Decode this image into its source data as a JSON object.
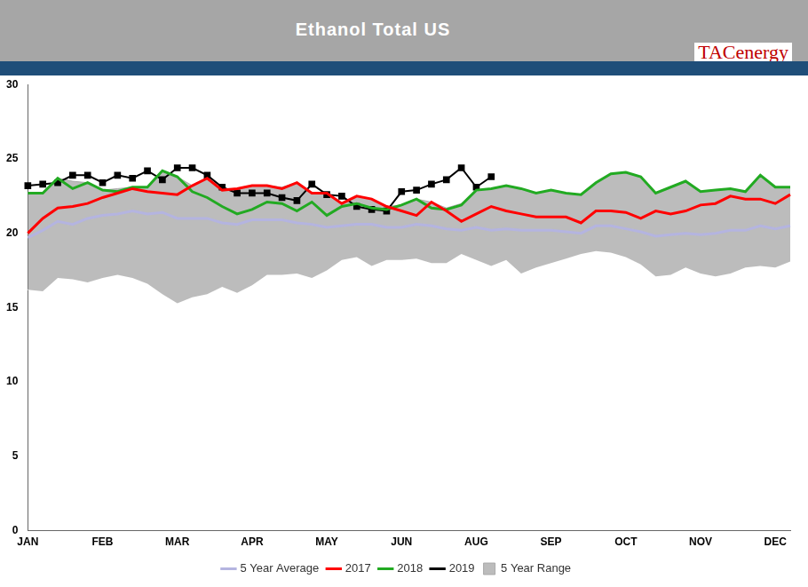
{
  "chart_data": {
    "type": "line",
    "title": "Ethanol Total US",
    "logo": "TACenergy",
    "categories": [
      "JAN",
      null,
      null,
      null,
      null,
      "FEB",
      null,
      null,
      null,
      null,
      "MAR",
      null,
      null,
      null,
      null,
      "APR",
      null,
      null,
      null,
      null,
      "MAY",
      null,
      null,
      null,
      null,
      "JUN",
      null,
      null,
      null,
      null,
      "AUG",
      null,
      null,
      null,
      null,
      "SEP",
      null,
      null,
      null,
      null,
      "OCT",
      null,
      null,
      null,
      null,
      "NOV",
      null,
      null,
      null,
      null,
      "DEC",
      null
    ],
    "ylim": [
      0,
      30
    ],
    "yticks": [
      0,
      5,
      10,
      15,
      20,
      25,
      30
    ],
    "grid": false,
    "legend": "bottom",
    "series": [
      {
        "name": "5 Year Range",
        "type": "area",
        "color": "#a6a6a6",
        "low": [
          16.2,
          16.1,
          17.0,
          16.9,
          16.7,
          17.0,
          17.2,
          17.0,
          16.6,
          15.9,
          15.3,
          15.7,
          15.9,
          16.4,
          16.0,
          16.5,
          17.2,
          17.2,
          17.3,
          17.0,
          17.5,
          18.2,
          18.4,
          17.8,
          18.2,
          18.2,
          18.3,
          18.0,
          18.0,
          18.6,
          18.2,
          17.8,
          18.2,
          17.3,
          17.7,
          18.0,
          18.3,
          18.6,
          18.8,
          18.7,
          18.4,
          17.9,
          17.1,
          17.2,
          17.7,
          17.3,
          17.1,
          17.3,
          17.7,
          17.8,
          17.7,
          18.1
        ],
        "high": [
          22.7,
          22.7,
          23.7,
          23.5,
          23.4,
          22.9,
          23.0,
          23.1,
          23.1,
          24.2,
          23.8,
          23.2,
          23.7,
          23.0,
          23.0,
          23.2,
          23.2,
          23.1,
          23.4,
          22.7,
          22.7,
          22.0,
          22.5,
          22.3,
          21.8,
          21.9,
          22.3,
          22.1,
          21.7,
          22.0,
          22.9,
          23.0,
          23.2,
          23.0,
          22.7,
          22.9,
          22.7,
          22.6,
          23.4,
          24.0,
          24.1,
          23.8,
          22.7,
          23.1,
          23.5,
          22.8,
          22.9,
          23.0,
          22.8,
          23.9,
          23.1,
          23.1
        ]
      },
      {
        "name": "5 Year Average",
        "type": "line",
        "color": "#b4b4e0",
        "marker": "none",
        "line_style": "solid",
        "values": [
          19.7,
          20.2,
          20.8,
          20.6,
          21.0,
          21.2,
          21.3,
          21.5,
          21.3,
          21.4,
          21.0,
          21.0,
          21.0,
          20.7,
          20.6,
          20.9,
          20.9,
          20.9,
          20.7,
          20.6,
          20.4,
          20.5,
          20.6,
          20.6,
          20.4,
          20.4,
          20.6,
          20.5,
          20.3,
          20.2,
          20.4,
          20.2,
          20.3,
          20.2,
          20.2,
          20.2,
          20.1,
          20.0,
          20.5,
          20.5,
          20.3,
          20.1,
          19.8,
          19.9,
          20.0,
          19.9,
          20.0,
          20.2,
          20.2,
          20.5,
          20.3,
          20.5
        ]
      },
      {
        "name": "2017",
        "type": "line",
        "color": "#ff0000",
        "marker": "none",
        "line_style": "solid",
        "values": [
          20.0,
          21.0,
          21.7,
          21.8,
          22.0,
          22.4,
          22.7,
          23.0,
          22.8,
          22.7,
          22.6,
          23.2,
          23.7,
          22.9,
          23.0,
          23.2,
          23.2,
          23.0,
          23.4,
          22.7,
          22.7,
          22.0,
          22.5,
          22.3,
          21.8,
          21.5,
          21.2,
          22.1,
          21.5,
          20.8,
          21.3,
          21.8,
          21.5,
          21.3,
          21.1,
          21.1,
          21.1,
          20.7,
          21.5,
          21.5,
          21.4,
          21.0,
          21.5,
          21.3,
          21.5,
          21.9,
          22.0,
          22.5,
          22.3,
          22.3,
          22.0,
          22.6
        ]
      },
      {
        "name": "2018",
        "type": "line",
        "color": "#22aa22",
        "marker": "none",
        "line_style": "solid",
        "values": [
          22.7,
          22.7,
          23.7,
          23.0,
          23.4,
          22.9,
          22.8,
          23.1,
          23.1,
          24.2,
          23.8,
          22.8,
          22.4,
          21.8,
          21.3,
          21.6,
          22.1,
          22.0,
          21.5,
          22.1,
          21.2,
          21.8,
          22.0,
          21.7,
          21.6,
          21.9,
          22.3,
          21.7,
          21.6,
          21.9,
          22.9,
          23.0,
          23.2,
          23.0,
          22.7,
          22.9,
          22.7,
          22.6,
          23.4,
          24.0,
          24.1,
          23.8,
          22.7,
          23.1,
          23.5,
          22.8,
          22.9,
          23.0,
          22.8,
          23.9,
          23.1,
          23.1
        ]
      },
      {
        "name": "2019",
        "type": "line",
        "color": "#000000",
        "marker": "square",
        "line_style": "solid",
        "values": [
          23.2,
          23.3,
          23.4,
          23.9,
          23.9,
          23.4,
          23.9,
          23.7,
          24.2,
          23.6,
          24.4,
          24.4,
          23.9,
          23.1,
          22.7,
          22.7,
          22.7,
          22.4,
          22.2,
          23.3,
          22.6,
          22.5,
          21.8,
          21.6,
          21.5,
          22.8,
          22.9,
          23.3,
          23.6,
          24.4,
          23.1,
          23.8,
          null,
          null,
          null,
          null,
          null,
          null,
          null,
          null,
          null,
          null,
          null,
          null,
          null,
          null,
          null,
          null,
          null,
          null,
          null,
          null
        ]
      }
    ]
  }
}
